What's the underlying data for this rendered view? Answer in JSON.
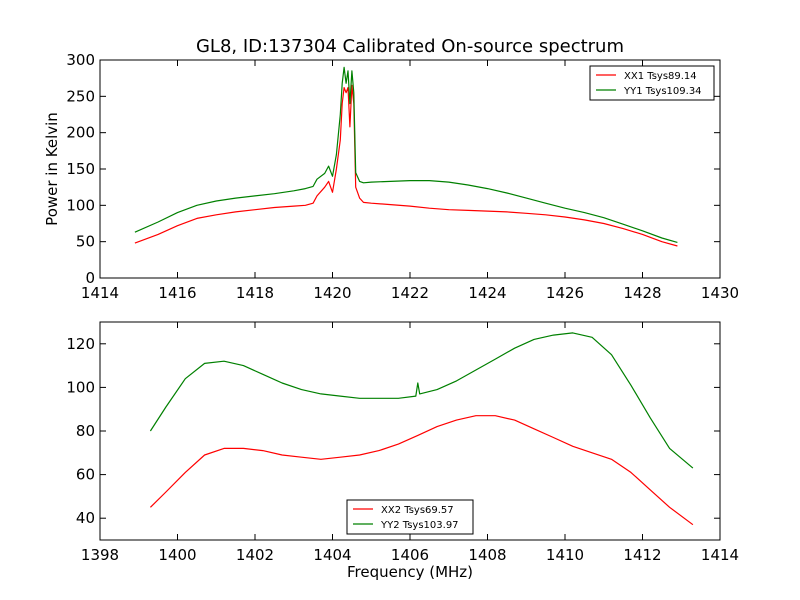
{
  "chart_data": [
    {
      "type": "line",
      "title": "GL8, ID:137304 Calibrated On-source spectrum",
      "xlabel": "",
      "ylabel": "Power in Kelvin",
      "xlim": [
        1414,
        1430
      ],
      "ylim": [
        0,
        300
      ],
      "xticks": [
        "1414",
        "1416",
        "1418",
        "1420",
        "1422",
        "1424",
        "1426",
        "1428",
        "1430"
      ],
      "yticks": [
        "0",
        "50",
        "100",
        "150",
        "200",
        "250",
        "300"
      ],
      "legend_position": "upper-right",
      "series": [
        {
          "name": "XX1 Tsys89.14",
          "color": "#ff0000",
          "x": [
            1414.9,
            1415.5,
            1416.0,
            1416.5,
            1417.0,
            1417.5,
            1418.0,
            1418.5,
            1419.0,
            1419.3,
            1419.5,
            1419.6,
            1419.8,
            1419.9,
            1420.0,
            1420.1,
            1420.2,
            1420.25,
            1420.3,
            1420.35,
            1420.4,
            1420.45,
            1420.5,
            1420.55,
            1420.6,
            1420.7,
            1420.8,
            1421.0,
            1421.5,
            1422.0,
            1422.5,
            1423.0,
            1423.5,
            1424.0,
            1424.5,
            1425.0,
            1425.5,
            1426.0,
            1426.5,
            1427.0,
            1427.5,
            1428.0,
            1428.5,
            1428.9
          ],
          "y": [
            48,
            60,
            72,
            82,
            87,
            91,
            94,
            97,
            99,
            100,
            103,
            113,
            125,
            133,
            118,
            150,
            190,
            240,
            262,
            255,
            262,
            208,
            265,
            240,
            125,
            110,
            104,
            103,
            101,
            99,
            96,
            94,
            93,
            92,
            91,
            89,
            87,
            84,
            80,
            75,
            68,
            60,
            50,
            44
          ]
        },
        {
          "name": "YY1 Tsys109.34",
          "color": "#008000",
          "x": [
            1414.9,
            1415.5,
            1416.0,
            1416.5,
            1417.0,
            1417.5,
            1418.0,
            1418.5,
            1419.0,
            1419.3,
            1419.5,
            1419.6,
            1419.8,
            1419.9,
            1420.0,
            1420.1,
            1420.2,
            1420.25,
            1420.3,
            1420.35,
            1420.4,
            1420.45,
            1420.5,
            1420.55,
            1420.6,
            1420.7,
            1420.8,
            1421.0,
            1421.5,
            1422.0,
            1422.5,
            1423.0,
            1423.5,
            1424.0,
            1424.5,
            1425.0,
            1425.5,
            1426.0,
            1426.5,
            1427.0,
            1427.5,
            1428.0,
            1428.5,
            1428.9
          ],
          "y": [
            63,
            77,
            90,
            100,
            106,
            110,
            113,
            116,
            120,
            123,
            126,
            136,
            144,
            154,
            140,
            170,
            225,
            268,
            290,
            268,
            285,
            240,
            285,
            255,
            145,
            133,
            131,
            132,
            133,
            134,
            134,
            132,
            128,
            123,
            117,
            110,
            103,
            96,
            90,
            83,
            74,
            65,
            55,
            49
          ]
        }
      ]
    },
    {
      "type": "line",
      "title": "",
      "xlabel": "Frequency (MHz)",
      "ylabel": "",
      "xlim": [
        1398,
        1414
      ],
      "ylim": [
        30,
        130
      ],
      "xticks": [
        "1398",
        "1400",
        "1402",
        "1404",
        "1406",
        "1408",
        "1410",
        "1412",
        "1414"
      ],
      "yticks": [
        "40",
        "60",
        "80",
        "100",
        "120"
      ],
      "legend_position": "lower-center",
      "series": [
        {
          "name": "XX2 Tsys69.57",
          "color": "#ff0000",
          "x": [
            1399.3,
            1399.7,
            1400.2,
            1400.7,
            1401.2,
            1401.7,
            1402.2,
            1402.7,
            1403.2,
            1403.7,
            1404.2,
            1404.7,
            1405.2,
            1405.7,
            1406.2,
            1406.7,
            1407.2,
            1407.7,
            1408.2,
            1408.7,
            1409.2,
            1409.7,
            1410.2,
            1410.7,
            1411.2,
            1411.7,
            1412.2,
            1412.7,
            1413.3
          ],
          "y": [
            45,
            52,
            61,
            69,
            72,
            72,
            71,
            69,
            68,
            67,
            68,
            69,
            71,
            74,
            78,
            82,
            85,
            87,
            87,
            85,
            81,
            77,
            73,
            70,
            67,
            61,
            53,
            45,
            37
          ]
        },
        {
          "name": "YY2 Tsys103.97",
          "color": "#008000",
          "x": [
            1399.3,
            1399.7,
            1400.2,
            1400.7,
            1401.2,
            1401.7,
            1402.2,
            1402.7,
            1403.2,
            1403.7,
            1404.2,
            1404.7,
            1405.2,
            1405.7,
            1406.15,
            1406.2,
            1406.25,
            1406.7,
            1407.2,
            1407.7,
            1408.2,
            1408.7,
            1409.2,
            1409.7,
            1410.2,
            1410.7,
            1411.2,
            1411.7,
            1412.2,
            1412.7,
            1413.3
          ],
          "y": [
            80,
            91,
            104,
            111,
            112,
            110,
            106,
            102,
            99,
            97,
            96,
            95,
            95,
            95,
            96,
            102,
            97,
            99,
            103,
            108,
            113,
            118,
            122,
            124,
            125,
            123,
            115,
            101,
            86,
            72,
            63
          ]
        }
      ]
    }
  ]
}
